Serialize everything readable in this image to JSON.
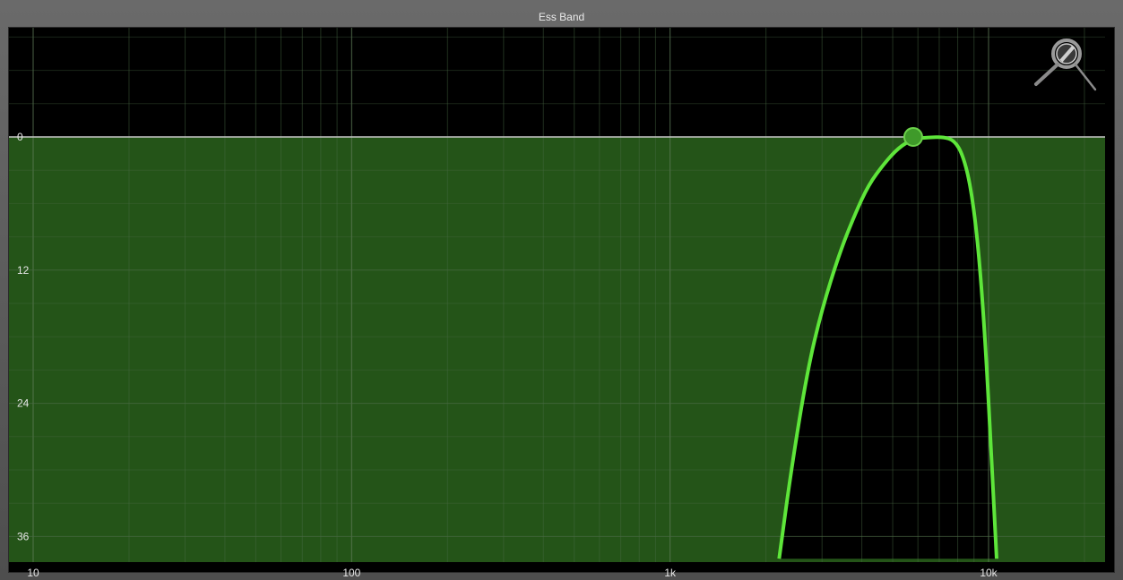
{
  "window": {
    "title": "Ess Band"
  },
  "icons": {
    "zoom": "magnifier-zoom-icon"
  },
  "colors": {
    "background": "#000000",
    "fill": "#245418",
    "curve": "#5ee63a",
    "grid": "#4a6a44",
    "zero_line": "#c8c8c8"
  },
  "chart_data": {
    "type": "area",
    "title": "Ess Band",
    "x_scale": "log",
    "xlim": [
      10,
      22000
    ],
    "ylim": [
      0,
      38
    ],
    "y_inverted": true,
    "x_ticks": [
      {
        "value": 10,
        "label": "10"
      },
      {
        "value": 100,
        "label": "100"
      },
      {
        "value": 1000,
        "label": "1k"
      },
      {
        "value": 10000,
        "label": "10k"
      }
    ],
    "y_ticks": [
      {
        "value": 0,
        "label": "0"
      },
      {
        "value": 12,
        "label": "12"
      },
      {
        "value": 24,
        "label": "24"
      },
      {
        "value": 36,
        "label": "36"
      }
    ],
    "grid": true,
    "band_handle": {
      "x": 5800,
      "y": 0
    },
    "curve": {
      "x": [
        2200,
        2400,
        2700,
        3000,
        3400,
        3800,
        4200,
        4700,
        5200,
        5800,
        6500,
        7200,
        7800,
        8300,
        8800,
        9300,
        9800,
        10300,
        10600
      ],
      "y": [
        38,
        30,
        21,
        15.5,
        10.5,
        7,
        4.3,
        2.4,
        1.0,
        0.15,
        0.05,
        0.0,
        0.3,
        1.6,
        4.5,
        10,
        19,
        31,
        38
      ]
    }
  }
}
